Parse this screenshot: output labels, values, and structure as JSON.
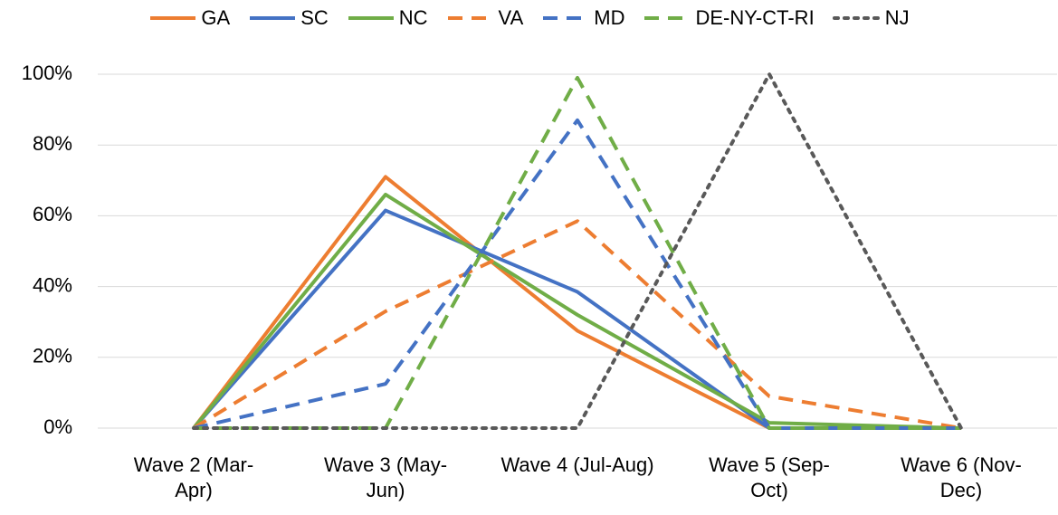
{
  "chart_data": {
    "type": "line",
    "categories": [
      "Wave 2 (Mar-Apr)",
      "Wave 3 (May-Jun)",
      "Wave 4 (Jul-Aug)",
      "Wave 5 (Sep-Oct)",
      "Wave 6 (Nov-Dec)"
    ],
    "series": [
      {
        "name": "GA",
        "color": "#ED7D31",
        "line_style": "solid",
        "values": [
          0,
          71,
          27.5,
          0,
          0
        ]
      },
      {
        "name": "SC",
        "color": "#4472C4",
        "line_style": "solid",
        "values": [
          0,
          61.5,
          38.5,
          0,
          0
        ]
      },
      {
        "name": "NC",
        "color": "#70AD47",
        "line_style": "solid",
        "values": [
          0,
          66,
          32,
          1.5,
          0
        ]
      },
      {
        "name": "VA",
        "color": "#ED7D31",
        "line_style": "dashed",
        "values": [
          0,
          33,
          58.5,
          9,
          0
        ]
      },
      {
        "name": "MD",
        "color": "#4472C4",
        "line_style": "dashed",
        "values": [
          0,
          12.5,
          87,
          0,
          0
        ]
      },
      {
        "name": "DE-NY-CT-RI",
        "color": "#70AD47",
        "line_style": "dashed",
        "values": [
          0,
          0,
          99,
          0,
          0
        ]
      },
      {
        "name": "NJ",
        "color": "#595959",
        "line_style": "dotted",
        "values": [
          0,
          0,
          0,
          100,
          0
        ]
      }
    ],
    "ylim": [
      0,
      100
    ],
    "yticks": [
      {
        "value": 0,
        "label": "0%"
      },
      {
        "value": 20,
        "label": "20%"
      },
      {
        "value": 40,
        "label": "40%"
      },
      {
        "value": 60,
        "label": "60%"
      },
      {
        "value": 80,
        "label": "80%"
      },
      {
        "value": 100,
        "label": "100%"
      }
    ],
    "grid": true
  }
}
